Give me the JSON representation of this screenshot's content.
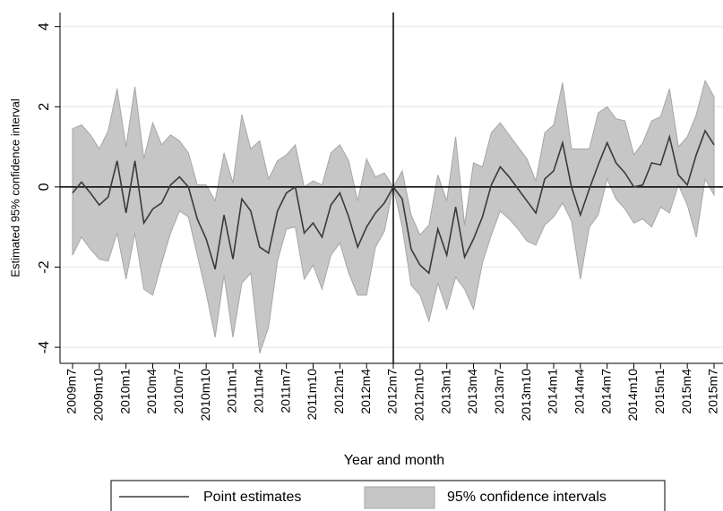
{
  "chart_data": {
    "type": "line",
    "y_label": "Estimated 95% confidence interval",
    "x_label": "Year and month",
    "categories": [
      "2009m7",
      null,
      null,
      "2009m10",
      null,
      null,
      "2010m1",
      null,
      null,
      "2010m4",
      null,
      null,
      "2010m7",
      null,
      null,
      "2010m10",
      null,
      null,
      "2011m1",
      null,
      null,
      "2011m4",
      null,
      null,
      "2011m7",
      null,
      null,
      "2011m10",
      null,
      null,
      "2012m1",
      null,
      null,
      "2012m4",
      null,
      null,
      "2012m7",
      null,
      null,
      "2012m10",
      null,
      null,
      "2013m1",
      null,
      null,
      "2013m4",
      null,
      null,
      "2013m7",
      null,
      null,
      "2013m10",
      null,
      null,
      "2014m1",
      null,
      null,
      "2014m4",
      null,
      null,
      "2014m7",
      null,
      null,
      "2014m10",
      null,
      null,
      "2015m1",
      null,
      null,
      "2015m4",
      null,
      null,
      "2015m7"
    ],
    "series": [
      {
        "name": "95% confidence intervals",
        "color": "#c6c6c6",
        "edge": "#a6a6a6",
        "upper": [
          1.45,
          1.55,
          1.3,
          0.95,
          1.4,
          2.45,
          1.0,
          2.5,
          0.7,
          1.6,
          1.05,
          1.3,
          1.15,
          0.85,
          0.05,
          0.05,
          -0.35,
          0.85,
          0.1,
          1.8,
          0.95,
          1.15,
          0.2,
          0.65,
          0.8,
          1.05,
          0.0,
          0.15,
          0.05,
          0.85,
          1.05,
          0.65,
          -0.35,
          0.7,
          0.25,
          0.35,
          0.0,
          0.4,
          -0.7,
          -1.2,
          -0.95,
          0.3,
          -0.35,
          1.25,
          -0.95,
          0.6,
          0.5,
          1.35,
          1.6,
          1.3,
          1.0,
          0.7,
          0.15,
          1.35,
          1.55,
          2.6,
          0.95,
          0.95,
          0.95,
          1.85,
          2.0,
          1.7,
          1.65,
          0.8,
          1.1,
          1.65,
          1.75,
          2.45,
          1.0,
          1.25,
          1.8,
          2.65,
          2.25
        ],
        "lower": [
          -1.7,
          -1.25,
          -1.55,
          -1.8,
          -1.85,
          -1.15,
          -2.3,
          -1.15,
          -2.55,
          -2.7,
          -1.9,
          -1.15,
          -0.6,
          -0.75,
          -1.7,
          -2.65,
          -3.75,
          -2.2,
          -3.75,
          -2.4,
          -2.15,
          -4.15,
          -3.5,
          -1.85,
          -1.05,
          -1.0,
          -2.3,
          -1.95,
          -2.55,
          -1.7,
          -1.4,
          -2.15,
          -2.7,
          -2.7,
          -1.5,
          -1.1,
          0.0,
          -1.0,
          -2.45,
          -2.7,
          -3.35,
          -2.4,
          -3.05,
          -2.25,
          -2.55,
          -3.05,
          -1.9,
          -1.2,
          -0.6,
          -0.8,
          -1.05,
          -1.35,
          -1.45,
          -0.95,
          -0.75,
          -0.4,
          -0.85,
          -2.3,
          -1.0,
          -0.7,
          0.2,
          -0.3,
          -0.55,
          -0.9,
          -0.8,
          -1.0,
          -0.5,
          -0.65,
          0.05,
          -0.45,
          -1.25,
          0.2,
          -0.2
        ]
      },
      {
        "name": "Point estimates",
        "color": "#3a3a3a",
        "values": [
          -0.15,
          0.12,
          -0.15,
          -0.45,
          -0.25,
          0.65,
          -0.65,
          0.65,
          -0.9,
          -0.55,
          -0.4,
          0.05,
          0.25,
          0.0,
          -0.8,
          -1.3,
          -2.05,
          -0.7,
          -1.8,
          -0.3,
          -0.6,
          -1.5,
          -1.65,
          -0.6,
          -0.15,
          0.0,
          -1.15,
          -0.9,
          -1.25,
          -0.45,
          -0.15,
          -0.75,
          -1.5,
          -1.0,
          -0.65,
          -0.4,
          0.0,
          -0.3,
          -1.55,
          -1.95,
          -2.15,
          -1.05,
          -1.7,
          -0.5,
          -1.75,
          -1.3,
          -0.75,
          0.05,
          0.5,
          0.25,
          -0.05,
          -0.35,
          -0.65,
          0.2,
          0.4,
          1.1,
          0.0,
          -0.7,
          -0.05,
          0.55,
          1.1,
          0.6,
          0.35,
          0.0,
          0.05,
          0.6,
          0.55,
          1.25,
          0.3,
          0.05,
          0.8,
          1.4,
          1.05
        ]
      }
    ],
    "ylim": [
      -4.4,
      4.35
    ],
    "yticks": [
      -4,
      -2,
      0,
      2,
      4
    ],
    "grid": true,
    "yline": 0,
    "xline": "2012m7",
    "legend": "bottom"
  }
}
